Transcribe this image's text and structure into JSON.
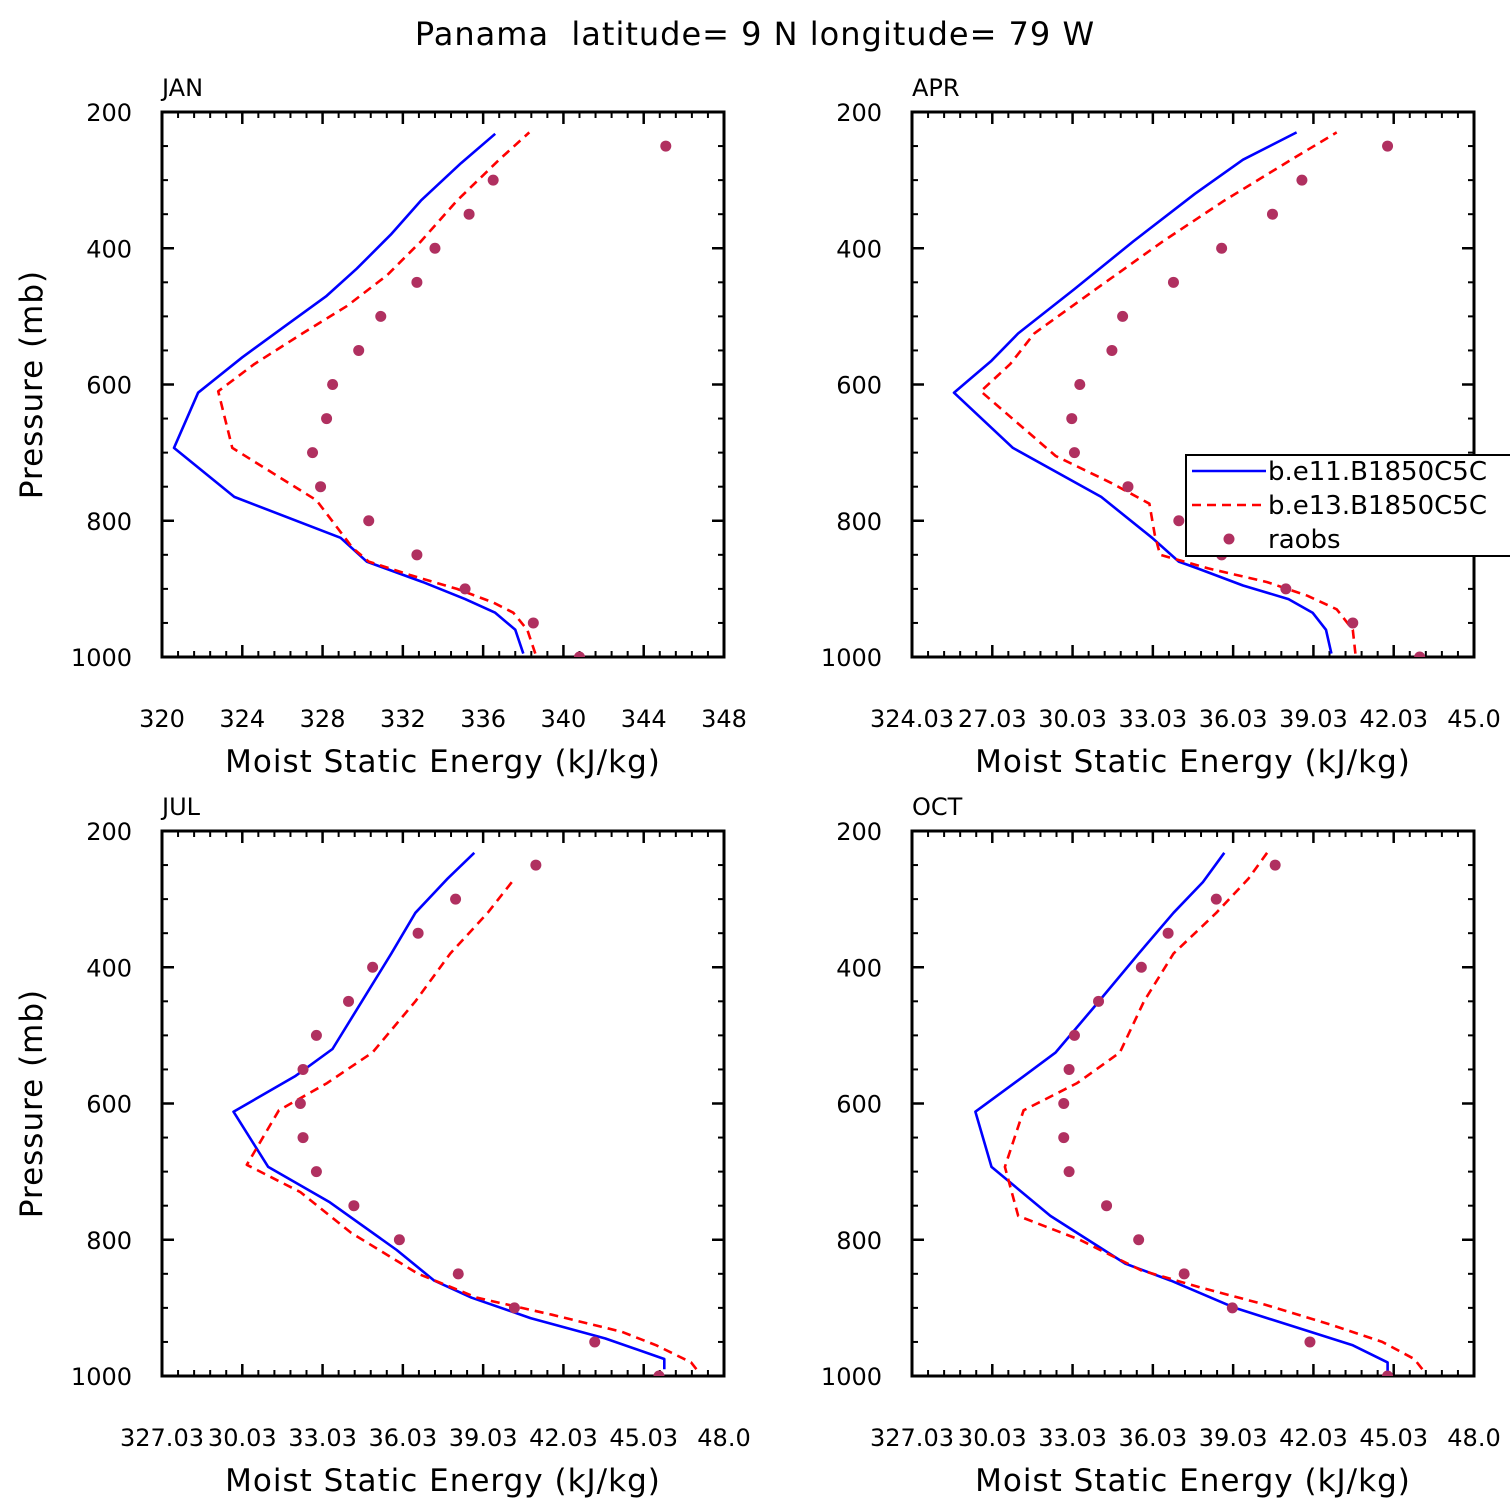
{
  "figure": {
    "title": "Panama  latitude= 9 N longitude= 79 W"
  },
  "colors": {
    "b_e11": "#0000ff",
    "b_e13": "#ff0000",
    "raobs": "#b03060"
  },
  "chart_data": [
    {
      "type": "line",
      "panel": "JAN",
      "xlabel": "Moist Static Energy (kJ/kg)",
      "ylabel": "Pressure (mb)",
      "xlim": [
        320,
        348
      ],
      "ylim": [
        1000,
        200
      ],
      "x_ticks": [
        320,
        324,
        328,
        332,
        336,
        340,
        344,
        348
      ],
      "x_tick_labels": [
        "320",
        "324",
        "328",
        "332",
        "336",
        "340",
        "344",
        "348"
      ],
      "y_ticks": [
        200,
        400,
        600,
        800,
        1000
      ],
      "y_tick_labels": [
        "200",
        "400",
        "600",
        "800",
        "1000"
      ],
      "legend": null,
      "series": [
        {
          "name": "b.e11.B1850C5CN",
          "style": "solid",
          "color": "#0000ff",
          "x": [
            338.0,
            337.6,
            336.6,
            335.1,
            333.0,
            330.2,
            328.9,
            323.6,
            320.6,
            321.8,
            324.0,
            326.1,
            328.2,
            329.7,
            331.4,
            332.9,
            334.9,
            336.6
          ],
          "y": [
            995,
            960,
            935,
            915,
            890,
            860,
            825,
            765,
            693,
            612,
            560,
            515,
            470,
            430,
            380,
            330,
            275,
            232
          ]
        },
        {
          "name": "b.e13.B1850C5CN",
          "style": "dashed",
          "color": "#ff0000",
          "x": [
            338.6,
            338.2,
            337.5,
            336.5,
            334.7,
            332.4,
            330.3,
            329.5,
            327.7,
            323.5,
            322.8,
            324.6,
            327.0,
            329.2,
            331.2,
            332.9,
            334.7,
            336.8,
            338.3
          ],
          "y": [
            995,
            960,
            935,
            920,
            900,
            880,
            860,
            840,
            770,
            693,
            610,
            570,
            525,
            485,
            440,
            390,
            330,
            270,
            230
          ]
        },
        {
          "name": "raobs",
          "style": "markers",
          "color": "#b03060",
          "x": [
            340.8,
            338.5,
            335.1,
            332.7,
            330.3,
            327.9,
            327.5,
            328.2,
            328.5,
            329.8,
            330.9,
            332.7,
            333.6,
            335.3,
            336.5,
            345.1
          ],
          "y": [
            1000,
            950,
            900,
            850,
            800,
            750,
            700,
            650,
            600,
            550,
            500,
            450,
            400,
            350,
            300,
            250
          ]
        }
      ]
    },
    {
      "type": "line",
      "panel": "APR",
      "xlabel": "Moist Static Energy (kJ/kg)",
      "ylabel": "",
      "xlim": [
        324.03,
        345.03
      ],
      "ylim": [
        1000,
        200
      ],
      "x_ticks": [
        324.03,
        327.03,
        330.03,
        333.03,
        336.03,
        339.03,
        342.03,
        345.03
      ],
      "x_tick_labels": [
        "324.03",
        "27.03",
        "30.03",
        "33.03",
        "36.03",
        "39.03",
        "42.03",
        "45.0"
      ],
      "y_ticks": [
        200,
        400,
        600,
        800,
        1000
      ],
      "y_tick_labels": [
        "200",
        "400",
        "600",
        "800",
        "1000"
      ],
      "legend": {
        "position": "right",
        "entries": [
          {
            "label": "b.e11.B1850C5C",
            "style": "solid",
            "color": "#0000ff"
          },
          {
            "label": "b.e13.B1850C5C",
            "style": "dashed",
            "color": "#ff0000"
          },
          {
            "label": "raobs",
            "style": "markers",
            "color": "#b03060"
          }
        ]
      },
      "series": [
        {
          "name": "b.e11.B1850C5CN",
          "style": "solid",
          "color": "#0000ff",
          "x": [
            339.7,
            339.5,
            339.0,
            338.1,
            336.4,
            334.7,
            334.0,
            333.0,
            331.1,
            327.8,
            325.6,
            327.0,
            328.0,
            330.1,
            332.3,
            334.6,
            336.4,
            338.4
          ],
          "y": [
            995,
            960,
            935,
            915,
            895,
            870,
            860,
            825,
            765,
            693,
            612,
            565,
            525,
            460,
            390,
            320,
            270,
            230
          ]
        },
        {
          "name": "b.e13.B1850C5CN",
          "style": "dashed",
          "color": "#ff0000",
          "x": [
            340.6,
            340.5,
            339.9,
            338.8,
            337.3,
            335.1,
            333.3,
            333.1,
            332.9,
            331.5,
            329.4,
            326.6,
            327.7,
            328.6,
            330.9,
            333.4,
            335.7,
            338.2,
            339.9
          ],
          "y": [
            995,
            960,
            930,
            910,
            890,
            870,
            850,
            820,
            775,
            745,
            705,
            610,
            570,
            525,
            460,
            390,
            330,
            270,
            230
          ]
        },
        {
          "name": "raobs",
          "style": "markers",
          "color": "#b03060",
          "x": [
            343.0,
            340.5,
            338.0,
            335.6,
            334.0,
            332.1,
            330.1,
            330.0,
            330.3,
            331.5,
            331.9,
            333.8,
            335.6,
            337.5,
            338.6,
            341.8
          ],
          "y": [
            1000,
            950,
            900,
            850,
            800,
            750,
            700,
            650,
            600,
            550,
            500,
            450,
            400,
            350,
            300,
            250
          ]
        }
      ]
    },
    {
      "type": "line",
      "panel": "JUL",
      "xlabel": "Moist Static Energy (kJ/kg)",
      "ylabel": "Pressure (mb)",
      "xlim": [
        327.03,
        348.03
      ],
      "ylim": [
        1000,
        200
      ],
      "x_ticks": [
        327.03,
        330.03,
        333.03,
        336.03,
        339.03,
        342.03,
        345.03,
        348.03
      ],
      "x_tick_labels": [
        "327.03",
        "30.03",
        "33.03",
        "36.03",
        "39.03",
        "42.03",
        "45.03",
        "48.0"
      ],
      "y_ticks": [
        200,
        400,
        600,
        800,
        1000
      ],
      "y_tick_labels": [
        "200",
        "400",
        "600",
        "800",
        "1000"
      ],
      "legend": null,
      "series": [
        {
          "name": "b.e11.B1850C5CN",
          "style": "solid",
          "color": "#0000ff",
          "x": [
            345.8,
            345.8,
            343.6,
            340.8,
            338.6,
            337.2,
            335.8,
            333.3,
            331.0,
            329.7,
            332.0,
            333.4,
            334.5,
            335.6,
            336.5,
            337.7,
            338.7
          ],
          "y": [
            990,
            975,
            945,
            915,
            885,
            860,
            815,
            745,
            693,
            612,
            560,
            520,
            450,
            380,
            320,
            270,
            232
          ]
        },
        {
          "name": "b.e13.B1850C5CN",
          "style": "dashed",
          "color": "#ff0000",
          "x": [
            347.0,
            346.8,
            345.5,
            344.2,
            341.6,
            338.8,
            336.6,
            334.1,
            332.2,
            330.2,
            331.4,
            333.2,
            334.9,
            336.5,
            337.8,
            339.2,
            340.2
          ],
          "y": [
            990,
            980,
            955,
            935,
            910,
            885,
            850,
            790,
            730,
            690,
            610,
            570,
            525,
            450,
            380,
            320,
            270
          ]
        },
        {
          "name": "raobs",
          "style": "markers",
          "color": "#b03060",
          "x": [
            345.6,
            343.2,
            340.2,
            338.1,
            335.9,
            334.2,
            332.8,
            332.3,
            332.2,
            332.3,
            332.8,
            334.0,
            334.9,
            336.6,
            338.0,
            341.0
          ],
          "y": [
            1000,
            950,
            900,
            850,
            800,
            750,
            700,
            650,
            600,
            550,
            500,
            450,
            400,
            350,
            300,
            250
          ]
        }
      ]
    },
    {
      "type": "line",
      "panel": "OCT",
      "xlabel": "Moist Static Energy (kJ/kg)",
      "ylabel": "",
      "xlim": [
        327.03,
        348.03
      ],
      "ylim": [
        1000,
        200
      ],
      "x_ticks": [
        327.03,
        330.03,
        333.03,
        336.03,
        339.03,
        342.03,
        345.03,
        348.03
      ],
      "x_tick_labels": [
        "327.03",
        "30.03",
        "33.03",
        "36.03",
        "39.03",
        "42.03",
        "45.03",
        "48.0"
      ],
      "y_ticks": [
        200,
        400,
        600,
        800,
        1000
      ],
      "y_tick_labels": [
        "200",
        "400",
        "600",
        "800",
        "1000"
      ],
      "legend": null,
      "series": [
        {
          "name": "b.e11.B1850C5CN",
          "style": "solid",
          "color": "#0000ff",
          "x": [
            344.8,
            344.8,
            343.5,
            341.5,
            339.1,
            336.7,
            335.0,
            332.2,
            330.0,
            329.4,
            331.2,
            332.4,
            333.8,
            335.5,
            336.8,
            337.9,
            338.7
          ],
          "y": [
            1000,
            980,
            955,
            930,
            900,
            860,
            835,
            765,
            693,
            612,
            560,
            525,
            460,
            380,
            320,
            275,
            232
          ]
        },
        {
          "name": "b.e13.B1850C5CN",
          "style": "dashed",
          "color": "#ff0000",
          "x": [
            346.1,
            345.8,
            344.6,
            342.7,
            340.2,
            337.8,
            335.6,
            333.3,
            331.0,
            330.5,
            331.2,
            333.2,
            334.8,
            335.7,
            336.8,
            338.4,
            339.6,
            340.3
          ],
          "y": [
            990,
            975,
            950,
            925,
            895,
            870,
            845,
            800,
            765,
            693,
            610,
            570,
            525,
            450,
            380,
            320,
            270,
            232
          ]
        },
        {
          "name": "raobs",
          "style": "markers",
          "color": "#b03060",
          "x": [
            344.8,
            341.9,
            339.0,
            337.2,
            335.5,
            334.3,
            332.9,
            332.7,
            332.7,
            332.9,
            333.1,
            334.0,
            335.6,
            336.6,
            338.4,
            340.6
          ],
          "y": [
            1000,
            950,
            900,
            850,
            800,
            750,
            700,
            650,
            600,
            550,
            500,
            450,
            400,
            350,
            300,
            250
          ]
        }
      ]
    }
  ]
}
